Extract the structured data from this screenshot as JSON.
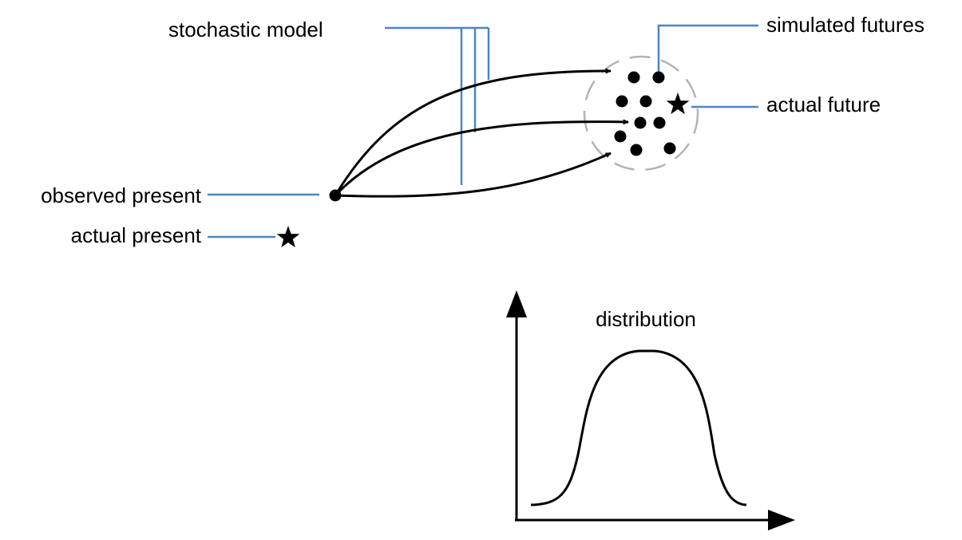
{
  "labels": {
    "stochastic_model": "stochastic model",
    "simulated_futures": "simulated futures",
    "actual_future": "actual future",
    "observed_present": "observed present",
    "actual_present": "actual present",
    "distribution": "distribution"
  },
  "colors": {
    "leader_line": "#4a86c8",
    "ink": "#000000",
    "future_region_outline": "#b3b3b3",
    "background": "#ffffff"
  },
  "icons": {
    "actual_present_marker": "star-icon",
    "actual_future_marker": "star-icon",
    "observed_present_marker": "dot-icon",
    "simulated_future_marker": "dot-icon"
  }
}
